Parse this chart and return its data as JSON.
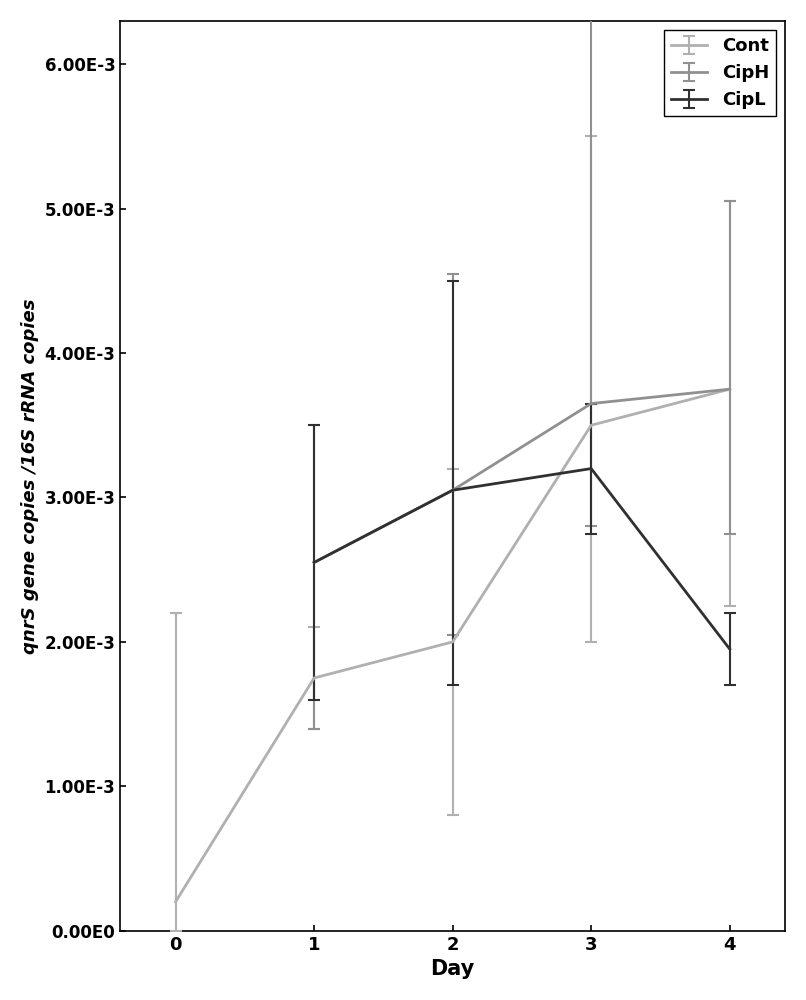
{
  "days": [
    0,
    1,
    2,
    3,
    4
  ],
  "series": {
    "Cont": {
      "values": [
        0.0002,
        0.00175,
        0.002,
        0.0035,
        0.00375
      ],
      "yerr_lower": [
        0.0002,
        0.00035,
        0.0012,
        0.0015,
        0.0015
      ],
      "yerr_upper": [
        0.002,
        0.00035,
        0.0012,
        0.002,
        0.0013
      ],
      "color": "#b0b0b0",
      "linewidth": 2.0
    },
    "CipH": {
      "values": [
        null,
        0.00255,
        0.00305,
        0.00365,
        0.00375
      ],
      "yerr_lower": [
        null,
        0.00115,
        0.001,
        0.00085,
        0.001
      ],
      "yerr_upper": [
        null,
        0.00095,
        0.0015,
        0.0165,
        0.0013
      ],
      "color": "#909090",
      "linewidth": 2.0
    },
    "CipL": {
      "values": [
        null,
        0.00255,
        0.00305,
        0.0032,
        0.00195
      ],
      "yerr_lower": [
        null,
        0.00095,
        0.00135,
        0.00045,
        0.00025
      ],
      "yerr_upper": [
        null,
        0.00095,
        0.00145,
        0.00045,
        0.00025
      ],
      "color": "#303030",
      "linewidth": 2.0
    }
  },
  "xlabel": "Day",
  "ylabel": "qnrS gene copies /16S rRNA copies",
  "ylim": [
    0,
    0.0063
  ],
  "yticks": [
    0,
    0.001,
    0.002,
    0.003,
    0.004,
    0.005,
    0.006
  ],
  "ytick_labels": [
    "0.00E0",
    "1.00E-3",
    "2.00E-3",
    "3.00E-3",
    "4.00E-3",
    "5.00E-3",
    "6.00E-3"
  ],
  "xticks": [
    0,
    1,
    2,
    3,
    4
  ],
  "legend_loc": "upper right",
  "background_color": "#ffffff",
  "figsize": [
    8.06,
    10.0
  ],
  "dpi": 100
}
